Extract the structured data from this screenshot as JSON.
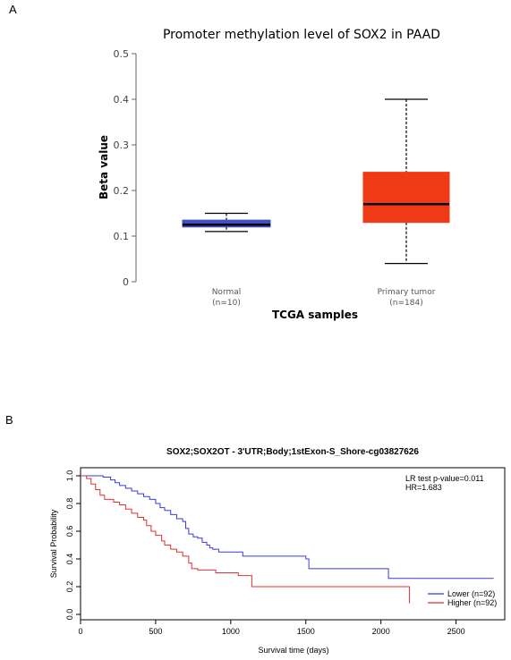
{
  "panel_a_label": "A",
  "panel_b_label": "B",
  "chart_data": [
    {
      "type": "box",
      "title": "Promoter methylation level of SOX2 in PAAD",
      "xlabel": "TCGA samples",
      "ylabel": "Beta value",
      "ylim": [
        0,
        0.5
      ],
      "yticks": [
        "0",
        "0.1",
        "0.2",
        "0.3",
        "0.4",
        "0.5"
      ],
      "categories": [
        {
          "name": "Normal",
          "n_label": "(n=10)",
          "min": 0.11,
          "q1": 0.12,
          "median": 0.125,
          "q3": 0.135,
          "max": 0.15,
          "color": "#3f4fc4"
        },
        {
          "name": "Primary tumor",
          "n_label": "(n=184)",
          "min": 0.04,
          "q1": 0.13,
          "median": 0.17,
          "q3": 0.24,
          "max": 0.4,
          "color": "#f03a16"
        }
      ]
    },
    {
      "type": "line",
      "title": "SOX2;SOX2OT - 3'UTR;Body;1stExon-S_Shore-cg03827626",
      "xlabel": "Survival time (days)",
      "ylabel": "Survival Probability",
      "xlim": [
        0,
        2800
      ],
      "ylim": [
        0,
        1.0
      ],
      "xticks": [
        "0",
        "500",
        "1000",
        "1500",
        "2000",
        "2500"
      ],
      "yticks": [
        "0.0",
        "0.2",
        "0.4",
        "0.6",
        "0.8",
        "1.0"
      ],
      "annotations": [
        "LR test p-value=0.011",
        "HR=1.683"
      ],
      "series": [
        {
          "name": "Lower (n=92)",
          "color": "#3b3bd9",
          "points": [
            [
              0,
              1.0
            ],
            [
              150,
              0.99
            ],
            [
              200,
              0.97
            ],
            [
              230,
              0.95
            ],
            [
              260,
              0.93
            ],
            [
              300,
              0.91
            ],
            [
              340,
              0.89
            ],
            [
              380,
              0.87
            ],
            [
              420,
              0.85
            ],
            [
              460,
              0.83
            ],
            [
              500,
              0.8
            ],
            [
              530,
              0.77
            ],
            [
              560,
              0.75
            ],
            [
              600,
              0.72
            ],
            [
              640,
              0.69
            ],
            [
              680,
              0.67
            ],
            [
              700,
              0.62
            ],
            [
              720,
              0.58
            ],
            [
              750,
              0.56
            ],
            [
              780,
              0.55
            ],
            [
              810,
              0.52
            ],
            [
              840,
              0.5
            ],
            [
              860,
              0.48
            ],
            [
              880,
              0.47
            ],
            [
              920,
              0.45
            ],
            [
              1060,
              0.45
            ],
            [
              1080,
              0.42
            ],
            [
              1500,
              0.4
            ],
            [
              1520,
              0.33
            ],
            [
              2040,
              0.33
            ],
            [
              2050,
              0.26
            ],
            [
              2750,
              0.26
            ]
          ]
        },
        {
          "name": "Higher (n=92)",
          "color": "#e03030",
          "points": [
            [
              0,
              1.0
            ],
            [
              40,
              0.98
            ],
            [
              70,
              0.94
            ],
            [
              100,
              0.9
            ],
            [
              130,
              0.86
            ],
            [
              160,
              0.83
            ],
            [
              220,
              0.81
            ],
            [
              260,
              0.79
            ],
            [
              300,
              0.76
            ],
            [
              340,
              0.73
            ],
            [
              380,
              0.7
            ],
            [
              420,
              0.68
            ],
            [
              440,
              0.64
            ],
            [
              470,
              0.6
            ],
            [
              500,
              0.57
            ],
            [
              540,
              0.53
            ],
            [
              560,
              0.5
            ],
            [
              600,
              0.47
            ],
            [
              640,
              0.45
            ],
            [
              680,
              0.42
            ],
            [
              720,
              0.37
            ],
            [
              740,
              0.33
            ],
            [
              780,
              0.32
            ],
            [
              900,
              0.3
            ],
            [
              1020,
              0.3
            ],
            [
              1050,
              0.28
            ],
            [
              1120,
              0.28
            ],
            [
              1140,
              0.2
            ],
            [
              2180,
              0.2
            ],
            [
              2190,
              0.08
            ]
          ]
        }
      ]
    }
  ]
}
